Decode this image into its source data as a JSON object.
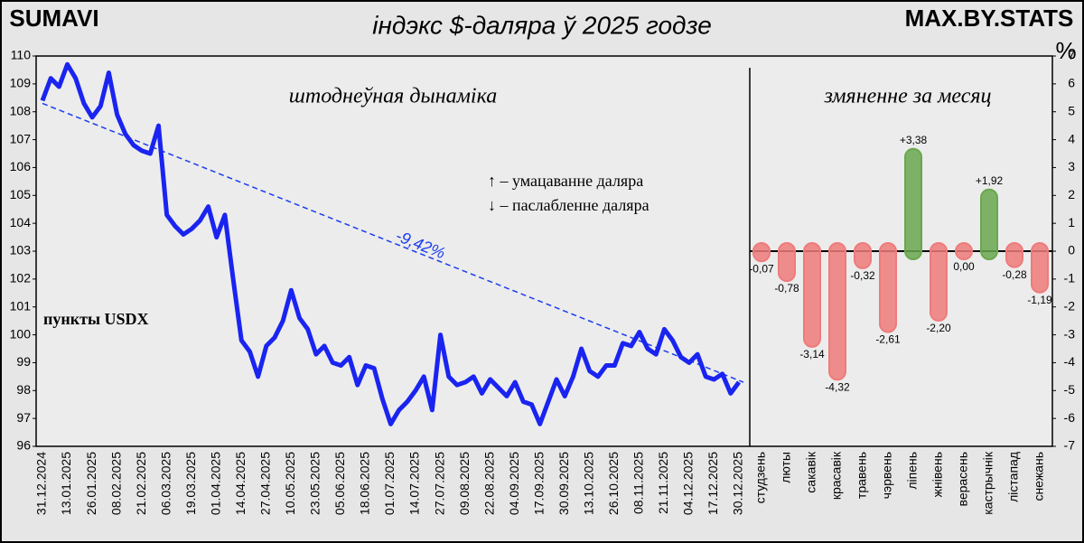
{
  "header": {
    "title": "індэкс $-даляра ў 2025 годзе",
    "logo_left": "SUMAVI",
    "logo_right": "MAX.BY.STATS"
  },
  "chart_data": [
    {
      "type": "line",
      "title": "штоднеўная дынаміка",
      "y_label": "пункты USDX",
      "annotations": [
        "↑ – умацаванне даляра",
        "↓ – паслабленне даляра"
      ],
      "categories": [
        "31.12.2024",
        null,
        null,
        "13.01.2025",
        null,
        null,
        "26.01.2025",
        null,
        null,
        "08.02.2025",
        null,
        null,
        "21.02.2025",
        null,
        null,
        "06.03.2025",
        null,
        null,
        "19.03.2025",
        null,
        null,
        "01.04.2025",
        null,
        null,
        "14.04.2025",
        null,
        null,
        "27.04.2025",
        null,
        null,
        "10.05.2025",
        null,
        null,
        "23.05.2025",
        null,
        null,
        "05.06.2025",
        null,
        null,
        "18.06.2025",
        null,
        null,
        "01.07.2025",
        null,
        null,
        "14.07.2025",
        null,
        null,
        "27.07.2025",
        null,
        null,
        "09.08.2025",
        null,
        null,
        "22.08.2025",
        null,
        null,
        "04.09.2025",
        null,
        null,
        "17.09.2025",
        null,
        null,
        "30.09.2025",
        null,
        null,
        "13.10.2025",
        null,
        null,
        "26.10.2025",
        null,
        null,
        "08.11.2025",
        null,
        null,
        "21.11.2025",
        null,
        null,
        "04.12.2025",
        null,
        null,
        "17.12.2025",
        null,
        null,
        "30.12.2025"
      ],
      "color": "#1a24f0",
      "values": [
        108.4,
        109.2,
        108.9,
        109.7,
        109.2,
        108.3,
        107.8,
        108.2,
        109.4,
        107.9,
        107.2,
        106.8,
        106.6,
        106.5,
        107.5,
        104.3,
        103.9,
        103.6,
        103.8,
        104.1,
        104.6,
        103.5,
        104.3,
        102.0,
        99.8,
        99.4,
        98.5,
        99.6,
        99.9,
        100.5,
        101.6,
        100.6,
        100.2,
        99.3,
        99.6,
        99.0,
        98.9,
        99.2,
        98.2,
        98.9,
        98.8,
        97.7,
        96.8,
        97.3,
        97.6,
        98.0,
        98.5,
        97.3,
        100.0,
        98.5,
        98.2,
        98.3,
        98.5,
        97.9,
        98.4,
        98.1,
        97.8,
        98.3,
        97.6,
        97.5,
        96.8,
        97.6,
        98.4,
        97.8,
        98.5,
        99.5,
        98.7,
        98.5,
        98.9,
        98.9,
        99.7,
        99.6,
        100.1,
        99.5,
        99.3,
        100.2,
        99.8,
        99.2,
        99.0,
        99.3,
        98.5,
        98.4,
        98.6,
        97.9,
        98.3
      ],
      "trend": {
        "values": [
          108.3,
          98.3
        ],
        "label": "-9,42%",
        "color": "#1a3cf0"
      },
      "ylim": [
        96,
        110
      ],
      "yticks": [
        96,
        97,
        98,
        99,
        100,
        101,
        102,
        103,
        104,
        105,
        106,
        107,
        108,
        109,
        110
      ]
    },
    {
      "type": "bar",
      "title": "змяненне за месяц",
      "y_label": "%",
      "categories": [
        "студзень",
        "люты",
        "сакавік",
        "красавік",
        "травень",
        "чэрвень",
        "ліпень",
        "жнівень",
        "верасень",
        "кастрычнік",
        "лістапад",
        "снежань"
      ],
      "values": [
        -0.07,
        -0.78,
        -3.14,
        -4.32,
        -0.32,
        -2.61,
        3.38,
        -2.2,
        0.0,
        1.92,
        -0.28,
        -1.19
      ],
      "value_labels": [
        "-0,07",
        "-0,78",
        "-3,14",
        "-4,32",
        "-0,32",
        "-2,61",
        "+3,38",
        "-2,20",
        "0,00",
        "+1,92",
        "-0,28",
        "-1,19"
      ],
      "colors": {
        "positive": "#6aa84f",
        "negative": "#ef7b7b"
      },
      "ylim": [
        -7,
        7
      ],
      "yticks": [
        -7,
        -6,
        -5,
        -4,
        -3,
        -2,
        -1,
        0,
        1,
        2,
        3,
        4,
        5,
        6,
        7
      ]
    }
  ]
}
